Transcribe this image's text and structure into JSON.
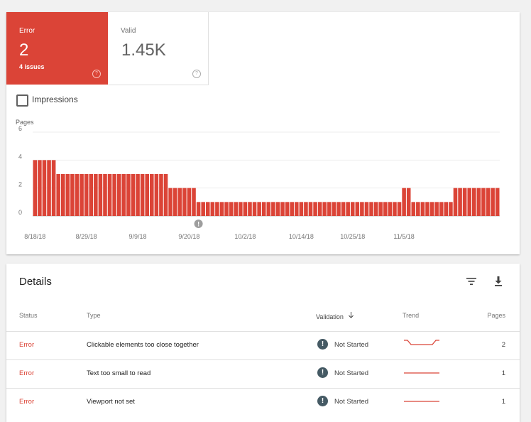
{
  "summary": {
    "error": {
      "label": "Error",
      "value": "2",
      "sub": "4 issues"
    },
    "valid": {
      "label": "Valid",
      "value": "1.45K"
    },
    "help_glyph": "?"
  },
  "impressions": {
    "label": "Impressions",
    "checked": false
  },
  "chart_data": {
    "type": "bar",
    "ylabel": "Pages",
    "ylim": [
      0,
      6
    ],
    "yticks": [
      0,
      2,
      4,
      6
    ],
    "color": "#db4437",
    "xtick_labels": [
      "8/18/18",
      "8/29/18",
      "9/9/18",
      "9/20/18",
      "10/2/18",
      "10/14/18",
      "10/25/18",
      "11/5/18"
    ],
    "xtick_index": [
      0,
      11,
      22,
      33,
      45,
      57,
      68,
      79
    ],
    "annotation": {
      "index": 35,
      "text": "!"
    },
    "values": [
      4,
      4,
      4,
      4,
      4,
      3,
      3,
      3,
      3,
      3,
      3,
      3,
      3,
      3,
      3,
      3,
      3,
      3,
      3,
      3,
      3,
      3,
      3,
      3,
      3,
      3,
      3,
      3,
      3,
      2,
      2,
      2,
      2,
      2,
      2,
      1,
      1,
      1,
      1,
      1,
      1,
      1,
      1,
      1,
      1,
      1,
      1,
      1,
      1,
      1,
      1,
      1,
      1,
      1,
      1,
      1,
      1,
      1,
      1,
      1,
      1,
      1,
      1,
      1,
      1,
      1,
      1,
      1,
      1,
      1,
      1,
      1,
      1,
      1,
      1,
      1,
      1,
      1,
      1,
      2,
      2,
      1,
      1,
      1,
      1,
      1,
      1,
      1,
      1,
      1,
      2,
      2,
      2,
      2,
      2,
      2,
      2,
      2,
      2,
      2
    ]
  },
  "details": {
    "title": "Details",
    "columns": {
      "status": "Status",
      "type": "Type",
      "validation": "Validation",
      "trend": "Trend",
      "pages": "Pages"
    },
    "rows": [
      {
        "status": "Error",
        "type": "Clickable elements too close together",
        "validation": "Not Started",
        "pages": "2",
        "trend": [
          2,
          2,
          1,
          1,
          1,
          1,
          1,
          1,
          1,
          2,
          2
        ]
      },
      {
        "status": "Error",
        "type": "Text too small to read",
        "validation": "Not Started",
        "pages": "1",
        "trend": [
          1,
          1,
          1,
          1,
          1,
          1,
          1,
          1,
          1,
          1,
          1
        ]
      },
      {
        "status": "Error",
        "type": "Viewport not set",
        "validation": "Not Started",
        "pages": "1",
        "trend": [
          1,
          1,
          1,
          1,
          1,
          1,
          1,
          1,
          1,
          1,
          1
        ]
      }
    ],
    "validation_icon_glyph": "!"
  }
}
